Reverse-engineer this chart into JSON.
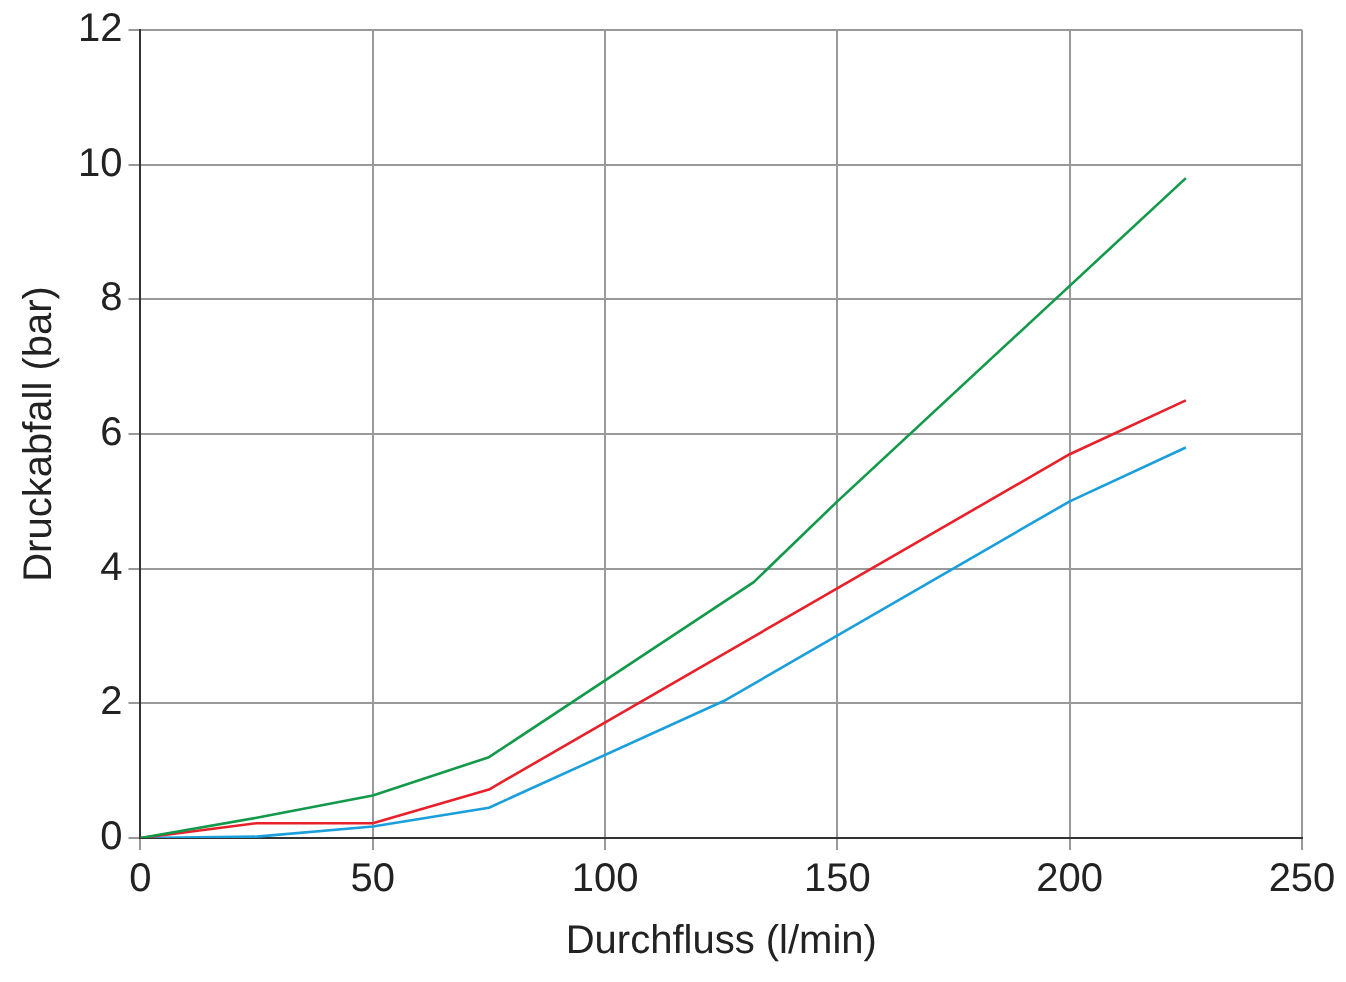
{
  "chart_data": {
    "type": "line",
    "xlabel": "Durchfluss (l/min)",
    "ylabel": "Druckabfall (bar)",
    "xlim": [
      0,
      250
    ],
    "xticks": [
      0,
      50,
      100,
      150,
      200,
      250
    ],
    "ylim": [
      0,
      12
    ],
    "yticks": [
      0,
      2,
      4,
      6,
      8,
      10,
      12
    ],
    "grid": true,
    "legend": false,
    "marker": "none",
    "series": [
      {
        "color": "#12994a",
        "x": [
          0,
          25,
          50,
          75,
          132,
          150,
          200,
          225
        ],
        "values": [
          0,
          0.3,
          0.63,
          1.2,
          3.8,
          5.0,
          8.2,
          9.8
        ]
      },
      {
        "color": "#e8202a",
        "x": [
          0,
          25,
          50,
          75,
          200,
          225
        ],
        "values": [
          0,
          0.22,
          0.22,
          0.72,
          5.7,
          6.5
        ]
      },
      {
        "color": "#1a9fdc",
        "x": [
          0,
          25,
          50,
          75,
          126,
          200,
          225
        ],
        "values": [
          0,
          0.02,
          0.17,
          0.45,
          2.05,
          5.0,
          5.8
        ]
      }
    ]
  }
}
